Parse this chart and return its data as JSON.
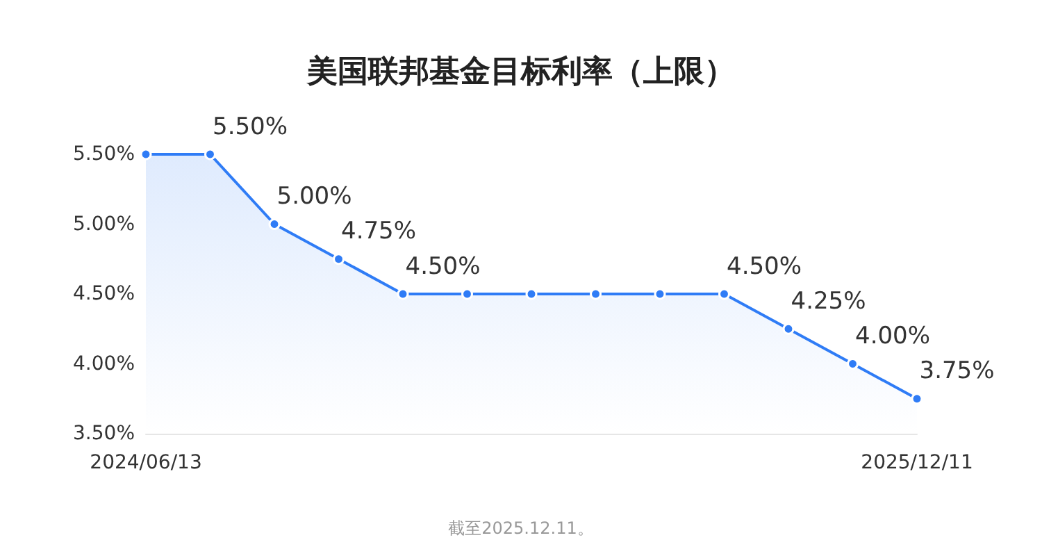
{
  "chart_data": {
    "type": "area",
    "title": "美国联邦基金目标利率（上限）",
    "categories": [
      "2024/06/13",
      null,
      null,
      null,
      null,
      null,
      null,
      null,
      null,
      null,
      null,
      null,
      "2025/12/11"
    ],
    "series": [
      {
        "color": "#2f7cf6",
        "values": [
          5.5,
          5.5,
          5.0,
          4.75,
          4.5,
          4.5,
          4.5,
          4.5,
          4.5,
          4.5,
          4.25,
          4.0,
          3.75
        ],
        "value_labels": [
          null,
          "5.50%",
          "5.00%",
          "4.75%",
          "4.50%",
          null,
          null,
          null,
          null,
          "4.50%",
          "4.25%",
          "4.00%",
          "3.75%"
        ]
      }
    ],
    "ylim": [
      3.5,
      5.5
    ],
    "yticks": [
      {
        "value": 3.5,
        "label": "3.50%"
      },
      {
        "value": 4.0,
        "label": "4.00%"
      },
      {
        "value": 4.5,
        "label": "4.50%"
      },
      {
        "value": 5.0,
        "label": "5.00%"
      },
      {
        "value": 5.5,
        "label": "5.50%"
      }
    ],
    "grid": false,
    "marker": "circle",
    "line_style": "solid",
    "annotations": [
      "截至2025.12.11。"
    ]
  }
}
